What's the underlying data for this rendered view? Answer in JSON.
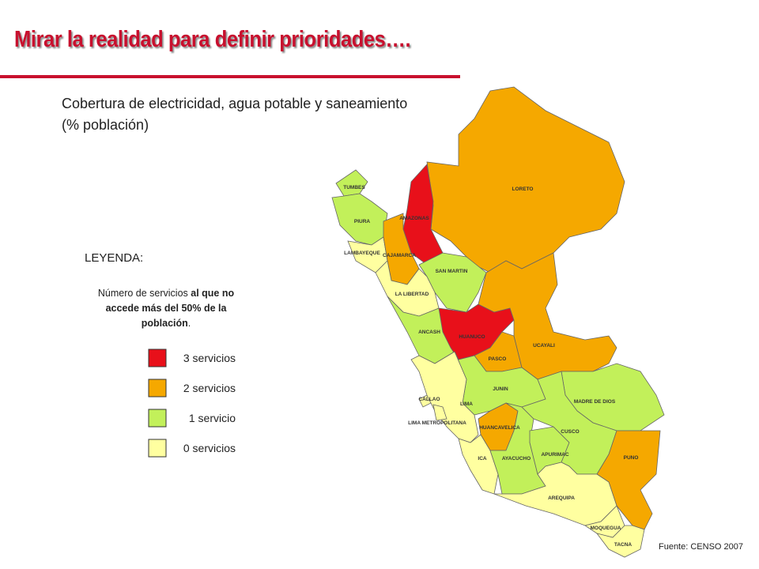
{
  "header": {
    "title": "Mirar la realidad para definir prioridades…."
  },
  "subtitle": "Cobertura de electricidad, agua potable y saneamiento (% población)",
  "legend": {
    "heading": "LEYENDA:",
    "description": [
      {
        "text": "Número de servicios ",
        "bold": false
      },
      {
        "text": "al que no accede más del 50% de la población",
        "bold": true
      },
      {
        "text": ".",
        "bold": false
      }
    ],
    "items": [
      {
        "label": "3 servicios",
        "color": "#e8101a"
      },
      {
        "label": "2 servicios",
        "color": "#f5a800"
      },
      {
        "label": "1 servicio",
        "color": "#c2f05a"
      },
      {
        "label": "0 servicios",
        "color": "#ffffa0"
      }
    ]
  },
  "regions": [
    {
      "label": "LORETO",
      "color": "#f5a800"
    },
    {
      "label": "AMAZONAS",
      "color": "#e8101a"
    },
    {
      "label": "TUMBES",
      "color": "#c2f05a"
    },
    {
      "label": "PIURA",
      "color": "#c2f05a"
    },
    {
      "label": "LAMBAYEQUE",
      "color": "#ffffa0"
    },
    {
      "label": "CAJAMARCA",
      "color": "#f5a800"
    },
    {
      "label": "SAN MARTIN",
      "color": "#c2f05a"
    },
    {
      "label": "LA LIBERTAD",
      "color": "#ffffa0"
    },
    {
      "label": "ANCASH",
      "color": "#c2f05a"
    },
    {
      "label": "HUANUCO",
      "color": "#e8101a"
    },
    {
      "label": "PASCO",
      "color": "#f5a800"
    },
    {
      "label": "UCAYALI",
      "color": "#f5a800"
    },
    {
      "label": "MADRE DE DIOS",
      "color": "#c2f05a"
    },
    {
      "label": "JUNIN",
      "color": "#c2f05a"
    },
    {
      "label": "CALLAO",
      "color": "#ffffa0"
    },
    {
      "label": "LIMA",
      "color": "#ffffa0"
    },
    {
      "label": "LIMA METROPOLITANA",
      "color": "#ffffa0"
    },
    {
      "label": "HUANCAVELICA",
      "color": "#f5a800"
    },
    {
      "label": "ICA",
      "color": "#ffffa0"
    },
    {
      "label": "AYACUCHO",
      "color": "#c2f05a"
    },
    {
      "label": "APURIMAC",
      "color": "#c2f05a"
    },
    {
      "label": "CUSCO",
      "color": "#c2f05a"
    },
    {
      "label": "PUNO",
      "color": "#f5a800"
    },
    {
      "label": "AREQUIPA",
      "color": "#ffffa0"
    },
    {
      "label": "MOQUEGUA",
      "color": "#ffffa0"
    },
    {
      "label": "TACNA",
      "color": "#ffffa0"
    }
  ],
  "source": "Fuente: CENSO 2007"
}
